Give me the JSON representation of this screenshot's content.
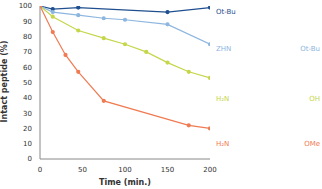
{
  "chart_data": {
    "type": "line",
    "x_label": "Time (min.)",
    "y_label": "Intact peptide (%)",
    "xlim": [
      0,
      200
    ],
    "xticks": [
      0,
      50,
      100,
      150,
      200
    ],
    "ylim": [
      0,
      100
    ],
    "yticks": [
      0,
      10,
      20,
      30,
      40,
      50,
      60,
      70,
      80,
      90,
      100
    ],
    "grid": false,
    "series": [
      {
        "color": "#1f4f8f",
        "marker": "circle",
        "x": [
          0,
          15,
          45,
          150,
          200
        ],
        "values": [
          100,
          98,
          99,
          96,
          99
        ],
        "annotations": [
          "Ot-Bu"
        ]
      },
      {
        "color": "#8db6df",
        "marker": "circle",
        "x": [
          0,
          15,
          45,
          75,
          100,
          150,
          200
        ],
        "values": [
          100,
          96,
          94,
          92,
          91,
          88,
          75
        ],
        "annotations": [
          "ZHN",
          "Ot-Bu"
        ]
      },
      {
        "color": "#c5d64a",
        "marker": "circle",
        "x": [
          0,
          15,
          45,
          75,
          100,
          125,
          150,
          175,
          200
        ],
        "values": [
          100,
          93,
          84,
          79,
          75,
          70,
          63,
          57,
          53
        ],
        "annotations": [
          "H₂N",
          "OH"
        ]
      },
      {
        "color": "#f07a52",
        "marker": "circle",
        "x": [
          0,
          15,
          30,
          45,
          75,
          175,
          200
        ],
        "values": [
          100,
          83,
          68,
          57,
          38,
          22,
          20
        ],
        "annotations": [
          "H₂N",
          "OMe"
        ]
      }
    ]
  }
}
